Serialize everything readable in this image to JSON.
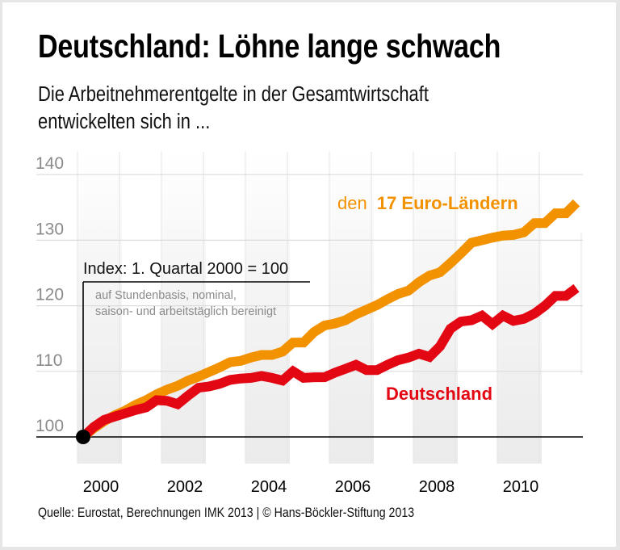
{
  "header": {
    "title": "Deutschland: Löhne lange schwach",
    "subtitle_line1": "Die Arbeitnehmerentgelte in der Gesamtwirtschaft",
    "subtitle_line2": "entwickelten sich in ..."
  },
  "footer": {
    "source": "Quelle: Eurostat, Berechnungen IMK 2013 | © Hans-Böckler-Stiftung 2013"
  },
  "chart_data": {
    "type": "line",
    "title": "Deutschland: Löhne lange schwach",
    "subtitle": "Die Arbeitnehmerentgelte in der Gesamtwirtschaft entwickelten sich in ...",
    "xlabel": "",
    "ylabel": "",
    "x_start": 2000,
    "x_step": "quarter",
    "xlim": [
      2000,
      2012
    ],
    "ylim": [
      100,
      140
    ],
    "yticks": [
      100,
      110,
      120,
      130,
      140
    ],
    "xticks": [
      2000,
      2002,
      2004,
      2006,
      2008,
      2010
    ],
    "grid": true,
    "annotation": {
      "index_label": "Index: 1. Quartal 2000 = 100",
      "note_line1": "auf Stundenbasis, nominal,",
      "note_line2": "saison- und arbeitstäglich bereinigt"
    },
    "series": [
      {
        "name": "den 17 Euro-Ländern",
        "label_prefix": "den",
        "label_main": "17 Euro-Ländern",
        "color": "#f39200",
        "values": [
          100,
          101.3,
          102.4,
          103.3,
          104.0,
          104.9,
          105.6,
          106.5,
          107.2,
          107.8,
          108.6,
          109.2,
          109.9,
          110.6,
          111.4,
          111.6,
          112.1,
          112.5,
          112.5,
          113.0,
          114.4,
          114.4,
          116.0,
          117.0,
          117.3,
          117.8,
          118.7,
          119.4,
          120.1,
          121.0,
          121.8,
          122.3,
          123.6,
          124.6,
          125.1,
          126.5,
          128.0,
          129.6,
          130.0,
          130.4,
          130.7,
          130.8,
          131.2,
          132.6,
          132.6,
          134.1,
          134.1,
          135.7
        ]
      },
      {
        "name": "Deutschland",
        "label_main": "Deutschland",
        "color": "#e30613",
        "values": [
          100,
          101.5,
          102.6,
          103.1,
          103.6,
          104.1,
          104.5,
          105.6,
          105.5,
          105.0,
          106.3,
          107.5,
          107.7,
          108.1,
          108.7,
          108.9,
          109.0,
          109.3,
          109.0,
          108.6,
          110.0,
          109.0,
          109.1,
          109.1,
          109.8,
          110.4,
          111.0,
          110.2,
          110.2,
          111.0,
          111.7,
          112.1,
          112.7,
          112.2,
          113.8,
          116.5,
          117.6,
          117.8,
          118.5,
          117.2,
          118.5,
          117.7,
          118.0,
          118.8,
          120.0,
          121.5,
          121.5,
          122.7
        ]
      }
    ]
  }
}
